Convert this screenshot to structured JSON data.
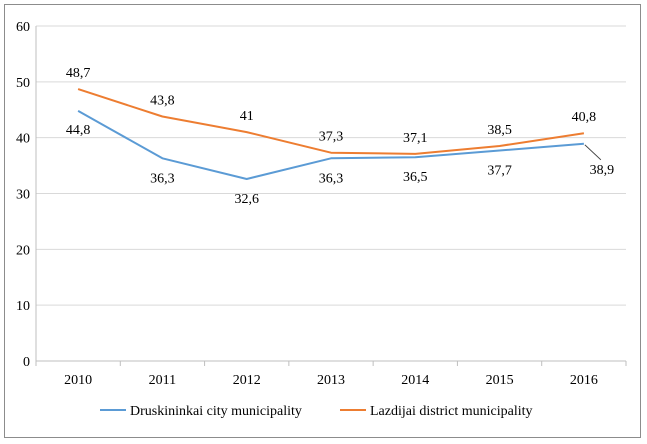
{
  "chart_data": {
    "type": "line",
    "categories": [
      "2010",
      "2011",
      "2012",
      "2013",
      "2014",
      "2015",
      "2016"
    ],
    "ylim": [
      0,
      60
    ],
    "yticks": [
      0,
      10,
      20,
      30,
      40,
      50,
      60
    ],
    "grid": true,
    "legend_position": "bottom",
    "series": [
      {
        "name": "Druskininkai city municipality",
        "color": "#5b9bd5",
        "values": [
          44.8,
          36.3,
          32.6,
          36.3,
          36.5,
          37.7,
          38.9
        ],
        "labels": [
          "44,8",
          "36,3",
          "32,6",
          "36,3",
          "36,5",
          "37,7",
          "38,9"
        ]
      },
      {
        "name": "Lazdijai district municipality",
        "color": "#ed7d31",
        "values": [
          48.7,
          43.8,
          41.0,
          37.3,
          37.1,
          38.5,
          40.8
        ],
        "labels": [
          "48,7",
          "43,8",
          "41",
          "37,3",
          "37,1",
          "38,5",
          "40,8"
        ]
      }
    ]
  }
}
